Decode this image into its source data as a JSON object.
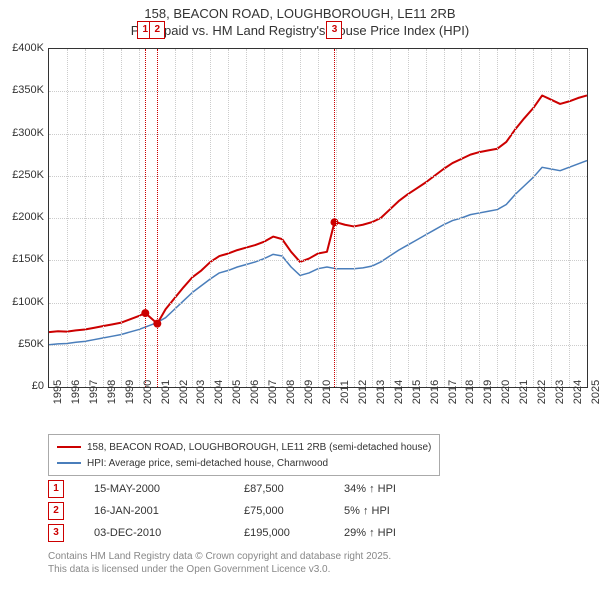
{
  "title_line1": "158, BEACON ROAD, LOUGHBOROUGH, LE11 2RB",
  "title_line2": "Price paid vs. HM Land Registry's House Price Index (HPI)",
  "chart": {
    "type": "line",
    "x_min": 1995,
    "x_max": 2025,
    "y_min": 0,
    "y_max": 400000,
    "y_ticks": [
      0,
      50000,
      100000,
      150000,
      200000,
      250000,
      300000,
      350000,
      400000
    ],
    "y_tick_labels": [
      "£0",
      "£50K",
      "£100K",
      "£150K",
      "£200K",
      "£250K",
      "£300K",
      "£350K",
      "£400K"
    ],
    "x_ticks": [
      1995,
      1996,
      1997,
      1998,
      1999,
      2000,
      2001,
      2002,
      2003,
      2004,
      2005,
      2006,
      2007,
      2008,
      2009,
      2010,
      2011,
      2012,
      2013,
      2014,
      2015,
      2016,
      2017,
      2018,
      2019,
      2020,
      2021,
      2022,
      2023,
      2024,
      2025
    ],
    "grid_color": "#cccccc",
    "background_color": "#ffffff",
    "title_fontsize": 13,
    "axis_label_fontsize": 11,
    "series": [
      {
        "name": "158, BEACON ROAD, LOUGHBOROUGH, LE11 2RB (semi-detached house)",
        "color": "#cc0000",
        "width": 2,
        "data": [
          [
            1995.0,
            65000
          ],
          [
            1995.5,
            66000
          ],
          [
            1996.0,
            65500
          ],
          [
            1996.5,
            67000
          ],
          [
            1997.0,
            68000
          ],
          [
            1997.5,
            70000
          ],
          [
            1998.0,
            72000
          ],
          [
            1998.5,
            74000
          ],
          [
            1999.0,
            76000
          ],
          [
            1999.5,
            80000
          ],
          [
            2000.0,
            84000
          ],
          [
            2000.37,
            87500
          ],
          [
            2000.5,
            85000
          ],
          [
            2001.04,
            75000
          ],
          [
            2001.5,
            92000
          ],
          [
            2002.0,
            105000
          ],
          [
            2002.5,
            118000
          ],
          [
            2003.0,
            130000
          ],
          [
            2003.5,
            138000
          ],
          [
            2004.0,
            148000
          ],
          [
            2004.5,
            155000
          ],
          [
            2005.0,
            158000
          ],
          [
            2005.5,
            162000
          ],
          [
            2006.0,
            165000
          ],
          [
            2006.5,
            168000
          ],
          [
            2007.0,
            172000
          ],
          [
            2007.5,
            178000
          ],
          [
            2008.0,
            175000
          ],
          [
            2008.5,
            160000
          ],
          [
            2009.0,
            148000
          ],
          [
            2009.5,
            152000
          ],
          [
            2010.0,
            158000
          ],
          [
            2010.5,
            160000
          ],
          [
            2010.92,
            195000
          ],
          [
            2011.0,
            195000
          ],
          [
            2011.5,
            192000
          ],
          [
            2012.0,
            190000
          ],
          [
            2012.5,
            192000
          ],
          [
            2013.0,
            195000
          ],
          [
            2013.5,
            200000
          ],
          [
            2014.0,
            210000
          ],
          [
            2014.5,
            220000
          ],
          [
            2015.0,
            228000
          ],
          [
            2015.5,
            235000
          ],
          [
            2016.0,
            242000
          ],
          [
            2016.5,
            250000
          ],
          [
            2017.0,
            258000
          ],
          [
            2017.5,
            265000
          ],
          [
            2018.0,
            270000
          ],
          [
            2018.5,
            275000
          ],
          [
            2019.0,
            278000
          ],
          [
            2019.5,
            280000
          ],
          [
            2020.0,
            282000
          ],
          [
            2020.5,
            290000
          ],
          [
            2021.0,
            305000
          ],
          [
            2021.5,
            318000
          ],
          [
            2022.0,
            330000
          ],
          [
            2022.5,
            345000
          ],
          [
            2023.0,
            340000
          ],
          [
            2023.5,
            335000
          ],
          [
            2024.0,
            338000
          ],
          [
            2024.5,
            342000
          ],
          [
            2025.0,
            345000
          ]
        ]
      },
      {
        "name": "HPI: Average price, semi-detached house, Charnwood",
        "color": "#4a7ebb",
        "width": 1.5,
        "data": [
          [
            1995.0,
            50000
          ],
          [
            1995.5,
            51000
          ],
          [
            1996.0,
            51500
          ],
          [
            1996.5,
            53000
          ],
          [
            1997.0,
            54000
          ],
          [
            1997.5,
            56000
          ],
          [
            1998.0,
            58000
          ],
          [
            1998.5,
            60000
          ],
          [
            1999.0,
            62000
          ],
          [
            1999.5,
            65000
          ],
          [
            2000.0,
            68000
          ],
          [
            2000.5,
            72000
          ],
          [
            2001.0,
            76000
          ],
          [
            2001.5,
            82000
          ],
          [
            2002.0,
            92000
          ],
          [
            2002.5,
            102000
          ],
          [
            2003.0,
            112000
          ],
          [
            2003.5,
            120000
          ],
          [
            2004.0,
            128000
          ],
          [
            2004.5,
            135000
          ],
          [
            2005.0,
            138000
          ],
          [
            2005.5,
            142000
          ],
          [
            2006.0,
            145000
          ],
          [
            2006.5,
            148000
          ],
          [
            2007.0,
            152000
          ],
          [
            2007.5,
            157000
          ],
          [
            2008.0,
            155000
          ],
          [
            2008.5,
            142000
          ],
          [
            2009.0,
            132000
          ],
          [
            2009.5,
            135000
          ],
          [
            2010.0,
            140000
          ],
          [
            2010.5,
            142000
          ],
          [
            2011.0,
            140000
          ],
          [
            2011.5,
            140000
          ],
          [
            2012.0,
            140000
          ],
          [
            2012.5,
            141000
          ],
          [
            2013.0,
            143000
          ],
          [
            2013.5,
            148000
          ],
          [
            2014.0,
            155000
          ],
          [
            2014.5,
            162000
          ],
          [
            2015.0,
            168000
          ],
          [
            2015.5,
            174000
          ],
          [
            2016.0,
            180000
          ],
          [
            2016.5,
            186000
          ],
          [
            2017.0,
            192000
          ],
          [
            2017.5,
            197000
          ],
          [
            2018.0,
            200000
          ],
          [
            2018.5,
            204000
          ],
          [
            2019.0,
            206000
          ],
          [
            2019.5,
            208000
          ],
          [
            2020.0,
            210000
          ],
          [
            2020.5,
            216000
          ],
          [
            2021.0,
            228000
          ],
          [
            2021.5,
            238000
          ],
          [
            2022.0,
            248000
          ],
          [
            2022.5,
            260000
          ],
          [
            2023.0,
            258000
          ],
          [
            2023.5,
            256000
          ],
          [
            2024.0,
            260000
          ],
          [
            2024.5,
            264000
          ],
          [
            2025.0,
            268000
          ]
        ]
      }
    ],
    "sale_markers": [
      {
        "n": "1",
        "x": 2000.37,
        "y": 87500,
        "color": "#cc0000"
      },
      {
        "n": "2",
        "x": 2001.04,
        "y": 75000,
        "color": "#cc0000"
      },
      {
        "n": "3",
        "x": 2010.92,
        "y": 195000,
        "color": "#cc0000"
      }
    ]
  },
  "legend": {
    "items": [
      {
        "label": "158, BEACON ROAD, LOUGHBOROUGH, LE11 2RB (semi-detached house)",
        "color": "#cc0000"
      },
      {
        "label": "HPI: Average price, semi-detached house, Charnwood",
        "color": "#4a7ebb"
      }
    ]
  },
  "sales_table": {
    "rows": [
      {
        "n": "1",
        "date": "15-MAY-2000",
        "price": "£87,500",
        "pct": "34% ↑ HPI",
        "color": "#cc0000"
      },
      {
        "n": "2",
        "date": "16-JAN-2001",
        "price": "£75,000",
        "pct": "5% ↑ HPI",
        "color": "#cc0000"
      },
      {
        "n": "3",
        "date": "03-DEC-2010",
        "price": "£195,000",
        "pct": "29% ↑ HPI",
        "color": "#cc0000"
      }
    ]
  },
  "footer_line1": "Contains HM Land Registry data © Crown copyright and database right 2025.",
  "footer_line2": "This data is licensed under the Open Government Licence v3.0."
}
